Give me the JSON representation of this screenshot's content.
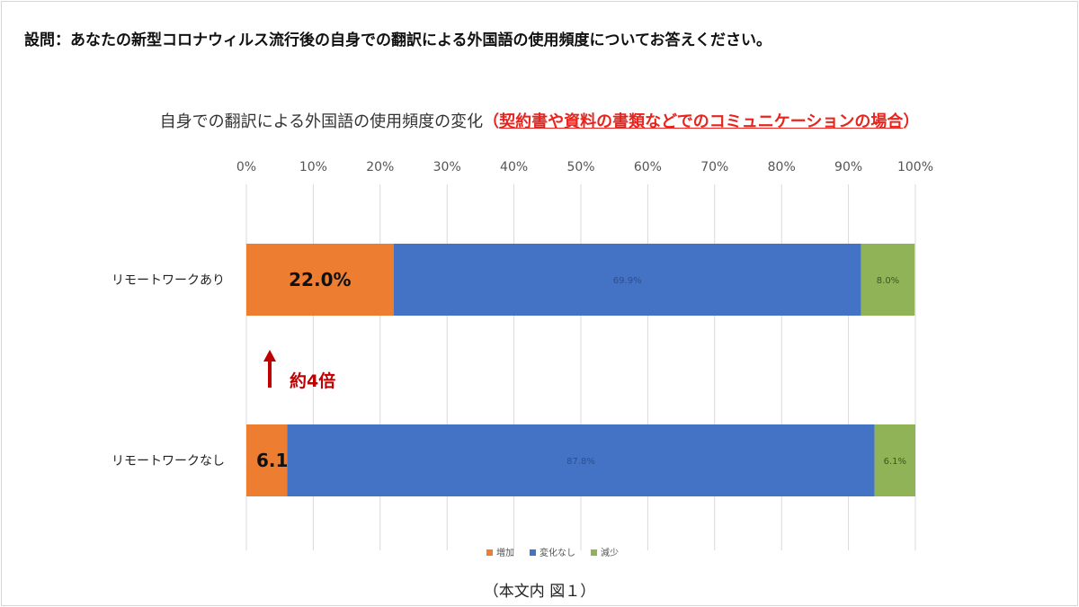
{
  "question": "設問：あなたの新型コロナウィルス流行後の自身での翻訳による外国語の使用頻度についてお答えください。",
  "caption": "（本文内 図１）",
  "annotation": "約4倍",
  "colors": {
    "increase": "#ed7d31",
    "nochange": "#4472c4",
    "decrease": "#8fb356",
    "grid": "#d9d9d9",
    "arrow": "#c00000",
    "highlight": "#e8241e"
  },
  "chart_data": {
    "type": "bar",
    "orientation": "horizontal",
    "stacked": true,
    "title": "自身での翻訳による外国語の使用頻度の変化",
    "title_paren_open": "（",
    "title_highlight": "契約書や資料の書類などでのコミュニケーションの場合",
    "title_paren_close": "）",
    "xlim": [
      0,
      100
    ],
    "x_ticks": [
      "0%",
      "10%",
      "20%",
      "30%",
      "40%",
      "50%",
      "60%",
      "70%",
      "80%",
      "90%",
      "100%"
    ],
    "categories": [
      "リモートワークあり",
      "リモートワークなし"
    ],
    "series": [
      {
        "name": "増加",
        "values": [
          22.0,
          6.1
        ],
        "labels": [
          "22.0%",
          "6.1%"
        ]
      },
      {
        "name": "変化なし",
        "values": [
          69.9,
          87.8
        ],
        "labels": [
          "69.9%",
          "87.8%"
        ]
      },
      {
        "name": "減少",
        "values": [
          8.0,
          6.1
        ],
        "labels": [
          "8.0%",
          "6.1%"
        ]
      }
    ],
    "legend_position": "bottom",
    "grid": true
  }
}
